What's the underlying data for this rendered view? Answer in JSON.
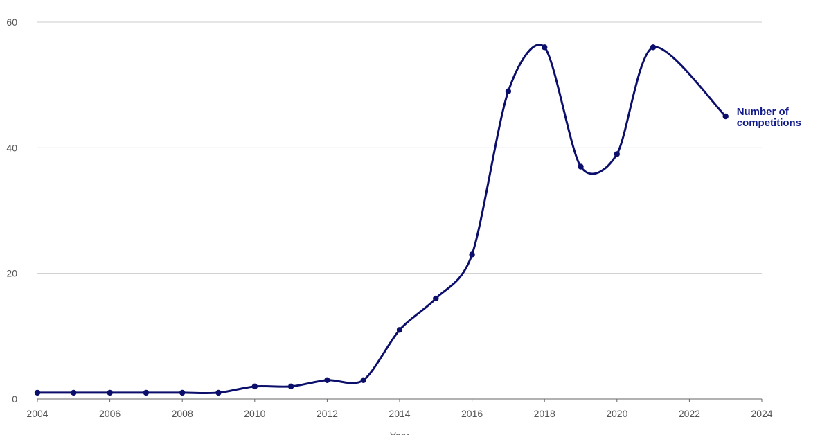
{
  "chart_data": {
    "type": "line",
    "title": "",
    "xlabel": "Year",
    "ylabel": "",
    "xlim": [
      2004,
      2024
    ],
    "ylim": [
      0,
      60
    ],
    "x_ticks": [
      2004,
      2006,
      2008,
      2010,
      2012,
      2014,
      2016,
      2018,
      2020,
      2022,
      2024
    ],
    "y_ticks": [
      0,
      20,
      40,
      60
    ],
    "grid": true,
    "legend": "inline-end-label",
    "colors": {
      "series": "#0b0f6b",
      "label": "#111a8a",
      "grid": "#cccccc",
      "axis": "#666666",
      "tick_text": "#555555"
    },
    "x": [
      2004,
      2005,
      2006,
      2007,
      2008,
      2009,
      2010,
      2011,
      2012,
      2013,
      2014,
      2015,
      2016,
      2017,
      2018,
      2019,
      2020,
      2021,
      2022,
      2023
    ],
    "series": [
      {
        "name": "Number of competitions",
        "label_lines": [
          "Number of",
          "competitions"
        ],
        "values": [
          1,
          1,
          1,
          1,
          1,
          1,
          2,
          2,
          3,
          3,
          11,
          16,
          23,
          49,
          56,
          37,
          39,
          56,
          null,
          45
        ]
      }
    ]
  }
}
